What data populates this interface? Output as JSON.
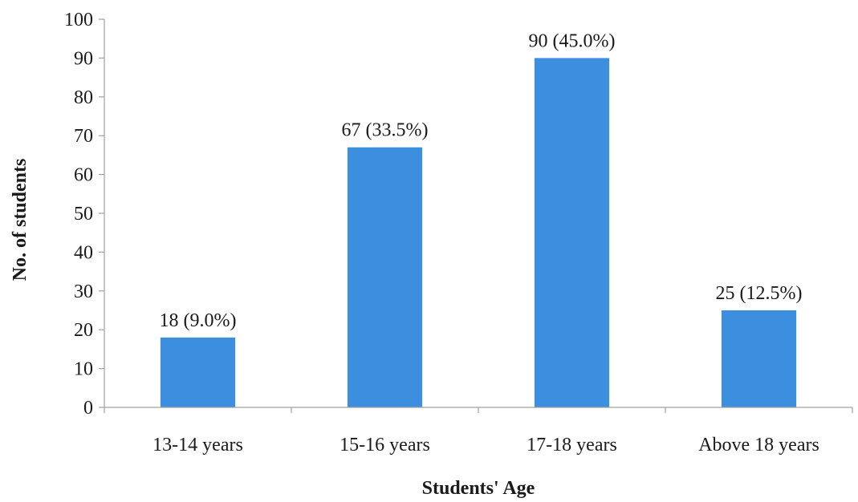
{
  "chart_data": {
    "type": "bar",
    "categories": [
      "13-14 years",
      "15-16 years",
      "17-18 years",
      "Above 18 years"
    ],
    "values": [
      18,
      67,
      90,
      25
    ],
    "data_labels": [
      "18 (9.0%)",
      "67 (33.5%)",
      "90 (45.0%)",
      "25 (12.5%)"
    ],
    "title": "",
    "xlabel": "Students' Age",
    "ylabel": "No. of students",
    "ylim": [
      0,
      100
    ],
    "yticks": [
      0,
      10,
      20,
      30,
      40,
      50,
      60,
      70,
      80,
      90,
      100
    ],
    "bar_color": "#3b8fde",
    "grid": false,
    "legend": "none"
  }
}
